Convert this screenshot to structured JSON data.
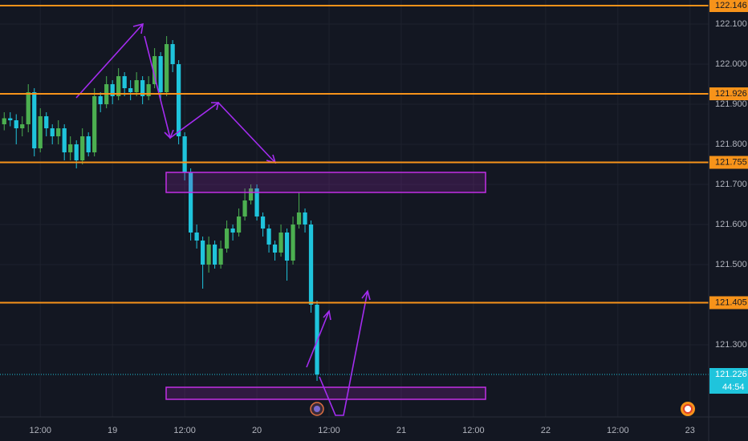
{
  "chart_data": {
    "type": "candlestick",
    "x": [
      6,
      7,
      8,
      9,
      10,
      11,
      12,
      13,
      14,
      15,
      16,
      17,
      18,
      19,
      20,
      21,
      22,
      23,
      24,
      25,
      26,
      27,
      28,
      29,
      30,
      31,
      32,
      33,
      34,
      35,
      36,
      37,
      38,
      39,
      40,
      41,
      42,
      43,
      44,
      45,
      46,
      47,
      48,
      49,
      50,
      51,
      52,
      53,
      54,
      55,
      56,
      57,
      58
    ],
    "open": [
      121.85,
      121.865,
      121.86,
      121.84,
      121.85,
      121.93,
      121.79,
      121.87,
      121.84,
      121.82,
      121.84,
      121.78,
      121.8,
      121.76,
      121.82,
      121.78,
      121.92,
      121.9,
      121.95,
      121.92,
      121.97,
      121.94,
      121.93,
      121.96,
      121.92,
      121.95,
      122.02,
      121.93,
      122.05,
      122.0,
      121.82,
      121.73,
      121.58,
      121.56,
      121.5,
      121.55,
      121.5,
      121.54,
      121.59,
      121.58,
      121.62,
      121.66,
      121.69,
      121.62,
      121.59,
      121.55,
      121.53,
      121.58,
      121.51,
      121.6,
      121.63,
      121.6,
      121.4
    ],
    "high": [
      121.88,
      121.88,
      121.875,
      121.87,
      121.95,
      121.94,
      121.89,
      121.88,
      121.85,
      121.86,
      121.85,
      121.82,
      121.81,
      121.84,
      121.83,
      121.94,
      121.93,
      121.97,
      121.96,
      121.99,
      121.98,
      121.96,
      121.98,
      121.97,
      121.97,
      122.04,
      122.03,
      122.07,
      122.06,
      122.01,
      121.83,
      121.74,
      121.6,
      121.57,
      121.57,
      121.56,
      121.56,
      121.61,
      121.6,
      121.64,
      121.69,
      121.7,
      121.7,
      121.63,
      121.6,
      121.56,
      121.6,
      121.59,
      121.62,
      121.68,
      121.64,
      121.61,
      121.41
    ],
    "low": [
      121.835,
      121.845,
      121.8,
      121.82,
      121.83,
      121.77,
      121.78,
      121.82,
      121.8,
      121.8,
      121.76,
      121.76,
      121.74,
      121.75,
      121.77,
      121.77,
      121.88,
      121.89,
      121.9,
      121.91,
      121.92,
      121.91,
      121.92,
      121.9,
      121.91,
      121.94,
      121.91,
      121.92,
      121.98,
      121.8,
      121.71,
      121.56,
      121.54,
      121.44,
      121.48,
      121.49,
      121.49,
      121.53,
      121.56,
      121.57,
      121.61,
      121.65,
      121.61,
      121.57,
      121.53,
      121.51,
      121.52,
      121.46,
      121.5,
      121.59,
      121.58,
      121.38,
      121.21
    ],
    "close": [
      121.865,
      121.86,
      121.84,
      121.85,
      121.93,
      121.79,
      121.87,
      121.84,
      121.82,
      121.84,
      121.78,
      121.8,
      121.76,
      121.82,
      121.78,
      121.92,
      121.9,
      121.95,
      121.92,
      121.97,
      121.94,
      121.93,
      121.96,
      121.92,
      121.95,
      122.02,
      121.93,
      122.05,
      122.0,
      121.82,
      121.73,
      121.58,
      121.56,
      121.5,
      121.55,
      121.5,
      121.54,
      121.59,
      121.58,
      121.62,
      121.66,
      121.69,
      121.62,
      121.59,
      121.55,
      121.53,
      121.58,
      121.51,
      121.6,
      121.63,
      121.6,
      121.4,
      121.226
    ],
    "up_color": "#4caf50",
    "down_color": "#1fc4dc",
    "ylim": [
      121.12,
      122.16
    ],
    "yticks": [
      {
        "value": 122.1,
        "label": "122.100"
      },
      {
        "value": 122.0,
        "label": "122.000"
      },
      {
        "value": 121.9,
        "label": "121.900"
      },
      {
        "value": 121.8,
        "label": "121.800"
      },
      {
        "value": 121.7,
        "label": "121.700"
      },
      {
        "value": 121.6,
        "label": "121.600"
      },
      {
        "value": 121.5,
        "label": "121.500"
      },
      {
        "value": 121.3,
        "label": "121.300"
      }
    ],
    "xlim": [
      5.3,
      123.1
    ],
    "xticks": [
      {
        "value": 12,
        "label": "12:00"
      },
      {
        "value": 24,
        "label": "19"
      },
      {
        "value": 36,
        "label": "12:00"
      },
      {
        "value": 48,
        "label": "20"
      },
      {
        "value": 60,
        "label": "12:00"
      },
      {
        "value": 72,
        "label": "21"
      },
      {
        "value": 84,
        "label": "12:00"
      },
      {
        "value": 96,
        "label": "22"
      },
      {
        "value": 108,
        "label": "12:00"
      },
      {
        "value": 120,
        "label": "23"
      }
    ],
    "grid": true,
    "levels": [
      122.146,
      121.926,
      121.755,
      121.405
    ],
    "level_color": "#f7931a",
    "current_price": 121.226,
    "countdown": "44:54"
  }
}
